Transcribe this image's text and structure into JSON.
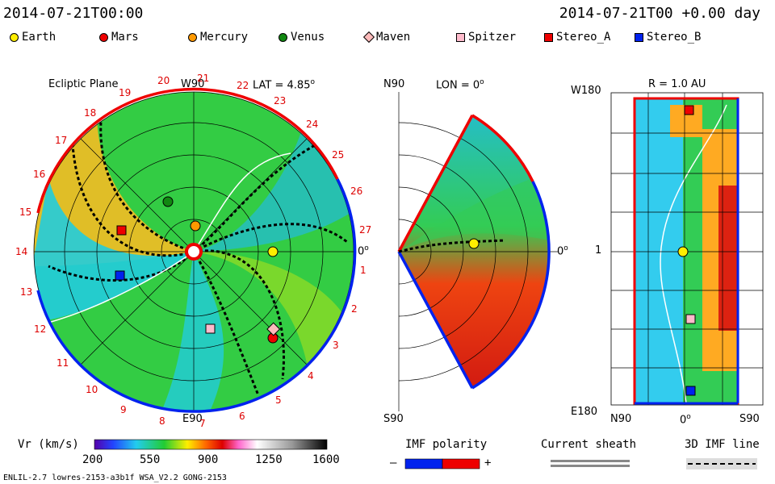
{
  "header": {
    "timestamp": "2014-07-21T00:00",
    "model_time": "2014-07-21T00 +0.00 day"
  },
  "legend": [
    {
      "name": "Earth",
      "color": "#ffee00",
      "shape": "circle"
    },
    {
      "name": "Mars",
      "color": "#ee0000",
      "shape": "circle"
    },
    {
      "name": "Mercury",
      "color": "#ff9900",
      "shape": "circle"
    },
    {
      "name": "Venus",
      "color": "#118811",
      "shape": "circle"
    },
    {
      "name": "Maven",
      "color": "#ffbbbb",
      "shape": "diamond"
    },
    {
      "name": "Spitzer",
      "color": "#ffbbcc",
      "shape": "square"
    },
    {
      "name": "Stereo_A",
      "color": "#ee0000",
      "shape": "square"
    },
    {
      "name": "Stereo_B",
      "color": "#0022ee",
      "shape": "square"
    }
  ],
  "panel_ecliptic": {
    "title": "Ecliptic Plane",
    "top_label": "W90",
    "bottom_label": "E90",
    "right_label": "0",
    "lat_label": "LAT = 4.85",
    "rotation_numbers": [
      "18",
      "19",
      "20",
      "21",
      "22",
      "23",
      "24",
      "25",
      "26",
      "27",
      "1",
      "2",
      "3",
      "4",
      "5",
      "6",
      "7",
      "8",
      "9",
      "10",
      "11",
      "12",
      "13",
      "14",
      "15",
      "16",
      "17"
    ]
  },
  "panel_meridional": {
    "lon_label": "LON = 0",
    "top_label": "N90",
    "bottom_label": "S90",
    "right_label": "0"
  },
  "panel_radial": {
    "r_label": "R = 1.0 AU",
    "top_left_label": "W180",
    "mid_left_label": "1",
    "bottom_left_label": "E180",
    "x_labels": [
      "N90",
      "0",
      "S90"
    ]
  },
  "colorbar": {
    "label": "Vr (km/s)",
    "ticks": [
      "200",
      "550",
      "900",
      "1250",
      "1600"
    ]
  },
  "imf_polarity": {
    "label": "IMF polarity",
    "minus": "–",
    "plus": "+"
  },
  "current_sheath": {
    "label": "Current sheath"
  },
  "imf_3d": {
    "label": "3D IMF line"
  },
  "footer": {
    "model_info": "ENLIL-2.7 lowres-2153-a3b1f WSA_V2.2 GONG-2153"
  }
}
